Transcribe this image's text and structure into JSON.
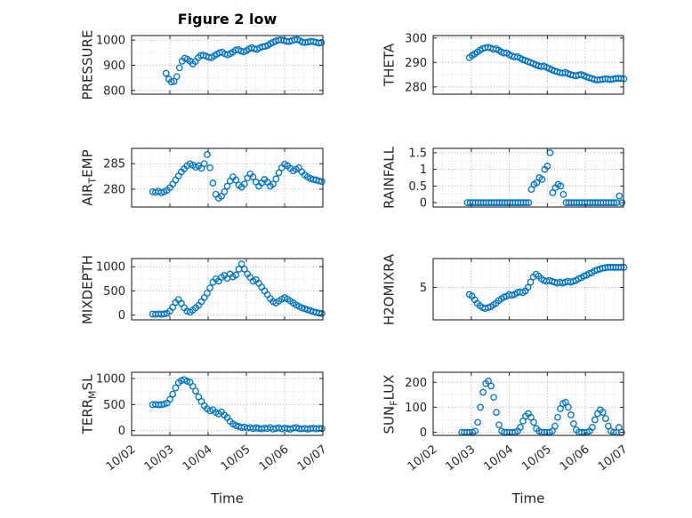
{
  "figure": {
    "title": "Figure 2 low",
    "xlabel": "Time",
    "marker_color": "#0072BD",
    "axis_color": "#262626",
    "grid_color": "#a8a8a8",
    "grid_minor_color": "#dcdcdc",
    "background": "#ffffff"
  },
  "chart_data": [
    {
      "name": "PRESSURE",
      "type": "scatter",
      "ylabel": {
        "pre": "PRESSURE",
        "sub": "",
        "post": ""
      },
      "yticks": [
        800,
        900,
        1000
      ],
      "ylim": [
        785,
        1018
      ],
      "xlim": [
        2,
        7
      ],
      "xticks": [
        2,
        3,
        4,
        5,
        6,
        7
      ],
      "x_start": 2.9,
      "x_step": 0.07,
      "values": [
        868,
        845,
        833,
        836,
        855,
        890,
        916,
        928,
        924,
        916,
        905,
        915,
        930,
        939,
        940,
        936,
        931,
        930,
        938,
        944,
        950,
        952,
        945,
        941,
        946,
        952,
        960,
        962,
        956,
        953,
        958,
        965,
        970,
        965,
        963,
        969,
        973,
        975,
        979,
        986,
        991,
        996,
        1000,
        1001,
        998,
        995,
        994,
        998,
        1001,
        1002,
        998,
        991,
        990,
        992,
        995,
        994,
        991,
        988,
        990
      ]
    },
    {
      "name": "THETA",
      "type": "scatter",
      "ylabel": {
        "pre": "THETA",
        "sub": "",
        "post": ""
      },
      "yticks": [
        280,
        290,
        300
      ],
      "ylim": [
        277,
        301
      ],
      "xlim": [
        2,
        7
      ],
      "xticks": [
        2,
        3,
        4,
        5,
        6,
        7
      ],
      "x_start": 2.95,
      "x_step": 0.07,
      "values": [
        292.0,
        292.8,
        293.5,
        294.2,
        295.0,
        295.6,
        296.0,
        296.2,
        295.9,
        295.4,
        295.6,
        295.0,
        294.3,
        293.8,
        293.9,
        293.2,
        292.6,
        292.2,
        292.4,
        291.8,
        291.2,
        290.8,
        290.3,
        290.0,
        289.5,
        289.0,
        288.6,
        288.3,
        288.5,
        288.0,
        287.5,
        287.0,
        286.5,
        286.2,
        285.8,
        285.6,
        285.9,
        285.4,
        285.0,
        284.7,
        284.5,
        284.8,
        285.0,
        284.6,
        284.1,
        283.7,
        283.4,
        283.0,
        282.8,
        282.9,
        283.1,
        283.3,
        283.2,
        283.0,
        283.2,
        283.4,
        283.5,
        283.4,
        283.3
      ]
    },
    {
      "name": "AIR_TEMP",
      "type": "scatter",
      "ylabel": {
        "pre": "AIR",
        "sub": "T",
        "post": "EMP"
      },
      "yticks": [
        280,
        285
      ],
      "ylim": [
        276.5,
        288
      ],
      "xlim": [
        2,
        7
      ],
      "xticks": [
        2,
        3,
        4,
        5,
        6,
        7
      ],
      "x_start": 2.55,
      "x_step": 0.075,
      "values": [
        279.5,
        279.4,
        279.6,
        279.3,
        279.5,
        279.8,
        280.3,
        281.0,
        281.8,
        282.6,
        283.4,
        284.0,
        284.6,
        285.0,
        284.7,
        284.3,
        284.6,
        284.1,
        285.0,
        286.8,
        284.2,
        281.2,
        279.0,
        278.2,
        278.6,
        279.5,
        280.6,
        281.6,
        282.4,
        281.8,
        280.8,
        280.4,
        281.0,
        282.2,
        283.0,
        282.4,
        281.4,
        280.6,
        281.2,
        281.9,
        281.4,
        280.6,
        281.0,
        282.0,
        283.2,
        284.2,
        284.9,
        284.6,
        284.1,
        283.6,
        283.9,
        284.2,
        283.4,
        282.8,
        282.4,
        282.1,
        281.9,
        281.8,
        281.6,
        281.5
      ]
    },
    {
      "name": "RAINFALL",
      "type": "scatter",
      "ylabel": {
        "pre": "RAINFALL",
        "sub": "",
        "post": ""
      },
      "yticks": [
        0,
        0.5,
        1,
        1.5
      ],
      "ylim": [
        -0.13,
        1.63
      ],
      "xlim": [
        2,
        7
      ],
      "xticks": [
        2,
        3,
        4,
        5,
        6,
        7
      ],
      "x_start": 2.9,
      "x_step": 0.07,
      "values": [
        0,
        0,
        0,
        0,
        0,
        0,
        0,
        0,
        0,
        0,
        0,
        0,
        0,
        0,
        0,
        0,
        0,
        0,
        0,
        0,
        0,
        0,
        0,
        0,
        0.4,
        0.55,
        0.6,
        0.75,
        0.7,
        1.0,
        1.1,
        1.5,
        0.3,
        0.45,
        0.55,
        0.5,
        0.25,
        0,
        0,
        0,
        0,
        0,
        0,
        0,
        0,
        0,
        0,
        0,
        0,
        0,
        0,
        0,
        0,
        0,
        0,
        0,
        0,
        0.2,
        0
      ]
    },
    {
      "name": "MIXDEPTH",
      "type": "scatter",
      "ylabel": {
        "pre": "MIXDEPTH",
        "sub": "",
        "post": ""
      },
      "yticks": [
        0,
        500,
        1000
      ],
      "ylim": [
        -100,
        1170
      ],
      "xlim": [
        2,
        7
      ],
      "xticks": [
        2,
        3,
        4,
        5,
        6,
        7
      ],
      "x_start": 2.55,
      "x_step": 0.075,
      "values": [
        20,
        15,
        25,
        18,
        22,
        35,
        80,
        160,
        260,
        320,
        240,
        150,
        80,
        60,
        100,
        150,
        200,
        280,
        360,
        450,
        560,
        680,
        750,
        700,
        780,
        820,
        760,
        850,
        790,
        830,
        950,
        1060,
        950,
        850,
        780,
        700,
        730,
        660,
        580,
        500,
        420,
        340,
        280,
        250,
        290,
        330,
        360,
        330,
        290,
        250,
        210,
        180,
        150,
        130,
        110,
        90,
        70,
        55,
        40,
        30
      ]
    },
    {
      "name": "H2OMIXRA",
      "type": "scatter",
      "ylabel": {
        "pre": "H2OMIXRA",
        "sub": "",
        "post": ""
      },
      "yticks": [
        5
      ],
      "ylim": [
        1.3,
        8.3
      ],
      "xlim": [
        2,
        7
      ],
      "xticks": [
        2,
        3,
        4,
        5,
        6,
        7
      ],
      "x_start": 2.95,
      "x_step": 0.07,
      "values": [
        4.2,
        4.0,
        3.6,
        3.2,
        2.9,
        2.7,
        2.6,
        2.7,
        2.8,
        3.0,
        3.2,
        3.5,
        3.7,
        3.9,
        4.0,
        4.2,
        4.1,
        4.2,
        4.4,
        4.5,
        4.4,
        4.6,
        5.0,
        5.6,
        6.2,
        6.5,
        6.3,
        6.0,
        5.8,
        5.7,
        5.8,
        5.7,
        5.6,
        5.5,
        5.6,
        5.5,
        5.6,
        5.7,
        5.6,
        5.7,
        5.8,
        6.0,
        6.1,
        6.3,
        6.4,
        6.6,
        6.7,
        6.9,
        7.0,
        7.1,
        7.2,
        7.25,
        7.3,
        7.3,
        7.3,
        7.3,
        7.3,
        7.3,
        7.3
      ]
    },
    {
      "name": "TERR_MSL",
      "type": "scatter",
      "ylabel": {
        "pre": "TERR",
        "sub": "M",
        "post": "SL"
      },
      "yticks": [
        0,
        500,
        1000
      ],
      "ylim": [
        -90,
        1120
      ],
      "xlim": [
        2,
        7
      ],
      "xticks": [
        2,
        3,
        4,
        5,
        6,
        7
      ],
      "xtick_labels": [
        "10/02",
        "10/03",
        "10/04",
        "10/05",
        "10/06",
        "10/07"
      ],
      "x_start": 2.55,
      "x_step": 0.075,
      "values": [
        500,
        505,
        495,
        500,
        510,
        530,
        600,
        700,
        820,
        920,
        960,
        980,
        950,
        930,
        850,
        760,
        650,
        560,
        480,
        420,
        380,
        400,
        350,
        320,
        360,
        300,
        250,
        180,
        130,
        100,
        80,
        60,
        70,
        50,
        60,
        40,
        55,
        45,
        35,
        50,
        40,
        60,
        30,
        45,
        55,
        35,
        50,
        40,
        30,
        50,
        60,
        40,
        35,
        45,
        30,
        40,
        50,
        35,
        45,
        40
      ]
    },
    {
      "name": "SUN_FLUX",
      "type": "scatter",
      "ylabel": {
        "pre": "SUN",
        "sub": "F",
        "post": "LUX"
      },
      "yticks": [
        0,
        100,
        200
      ],
      "ylim": [
        -12,
        240
      ],
      "xlim": [
        2,
        7
      ],
      "xticks": [
        2,
        3,
        4,
        5,
        6,
        7
      ],
      "xtick_labels": [
        "10/02",
        "10/03",
        "10/04",
        "10/05",
        "10/06",
        "10/07"
      ],
      "x_start": 2.75,
      "x_step": 0.07,
      "values": [
        0,
        0,
        0,
        0,
        0,
        5,
        40,
        100,
        160,
        195,
        205,
        185,
        140,
        80,
        30,
        5,
        0,
        0,
        0,
        0,
        0,
        5,
        20,
        45,
        65,
        75,
        60,
        40,
        15,
        5,
        0,
        0,
        0,
        0,
        5,
        25,
        60,
        95,
        115,
        120,
        100,
        70,
        35,
        10,
        0,
        0,
        0,
        0,
        5,
        20,
        50,
        75,
        90,
        80,
        55,
        25,
        5,
        0,
        0,
        20,
        0
      ]
    }
  ]
}
